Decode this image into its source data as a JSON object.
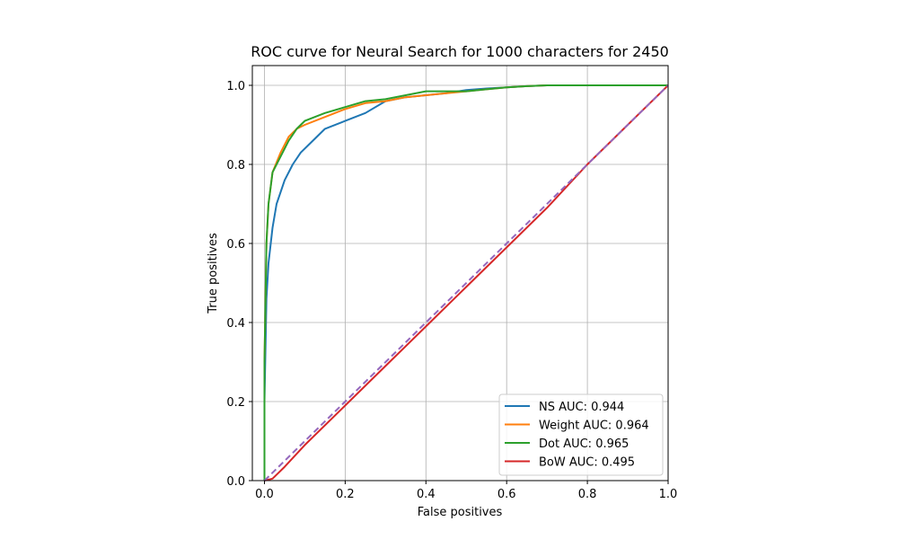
{
  "chart_data": {
    "type": "line",
    "title": "ROC curve for Neural Search for 1000 characters for 2450",
    "xlabel": "False positives",
    "ylabel": "True positives",
    "xlim": [
      -0.03,
      1.0
    ],
    "ylim": [
      0.0,
      1.05
    ],
    "xticks": [
      "0.0",
      "0.2",
      "0.4",
      "0.6",
      "0.8",
      "1.0"
    ],
    "yticks": [
      "0.0",
      "0.2",
      "0.4",
      "0.6",
      "0.8",
      "1.0"
    ],
    "grid": true,
    "legend_position": "lower-right",
    "series": [
      {
        "name": "NS AUC: 0.944",
        "color": "#1f77b4",
        "x": [
          0.0,
          0.0,
          0.005,
          0.01,
          0.02,
          0.03,
          0.05,
          0.07,
          0.09,
          0.12,
          0.15,
          0.2,
          0.25,
          0.3,
          0.35,
          0.4,
          0.45,
          0.5,
          0.55,
          0.6,
          0.65,
          0.7,
          1.0
        ],
        "y": [
          0.0,
          0.2,
          0.46,
          0.55,
          0.64,
          0.7,
          0.76,
          0.8,
          0.83,
          0.86,
          0.89,
          0.91,
          0.93,
          0.96,
          0.97,
          0.975,
          0.98,
          0.988,
          0.992,
          0.995,
          0.998,
          1.0,
          1.0
        ]
      },
      {
        "name": "Weight AUC: 0.964",
        "color": "#ff7f0e",
        "x": [
          0.0,
          0.0,
          0.005,
          0.01,
          0.02,
          0.04,
          0.06,
          0.08,
          0.1,
          0.15,
          0.2,
          0.25,
          0.3,
          0.35,
          0.4,
          0.5,
          0.55,
          0.6,
          0.65,
          0.7,
          1.0
        ],
        "y": [
          0.0,
          0.3,
          0.6,
          0.7,
          0.78,
          0.83,
          0.87,
          0.89,
          0.9,
          0.92,
          0.94,
          0.955,
          0.96,
          0.97,
          0.975,
          0.985,
          0.99,
          0.995,
          0.998,
          1.0,
          1.0
        ]
      },
      {
        "name": "Dot AUC: 0.965",
        "color": "#2ca02c",
        "x": [
          0.0,
          0.0,
          0.005,
          0.01,
          0.02,
          0.04,
          0.06,
          0.08,
          0.1,
          0.15,
          0.2,
          0.25,
          0.3,
          0.35,
          0.4,
          0.5,
          0.55,
          0.6,
          0.65,
          0.7,
          1.0
        ],
        "y": [
          0.0,
          0.3,
          0.6,
          0.7,
          0.78,
          0.82,
          0.86,
          0.89,
          0.91,
          0.93,
          0.945,
          0.96,
          0.965,
          0.975,
          0.985,
          0.985,
          0.99,
          0.995,
          0.998,
          1.0,
          1.0
        ]
      },
      {
        "name": "BoW AUC: 0.495",
        "color": "#d62728",
        "x": [
          0.0,
          0.02,
          0.05,
          0.1,
          0.2,
          0.3,
          0.4,
          0.5,
          0.6,
          0.7,
          0.8,
          0.9,
          1.0
        ],
        "y": [
          0.0,
          0.005,
          0.035,
          0.09,
          0.19,
          0.29,
          0.39,
          0.49,
          0.59,
          0.69,
          0.8,
          0.9,
          1.0
        ]
      },
      {
        "color": "#9467bd",
        "dashed": true,
        "x": [
          0.0,
          1.0
        ],
        "y": [
          0.0,
          1.0
        ]
      }
    ]
  }
}
